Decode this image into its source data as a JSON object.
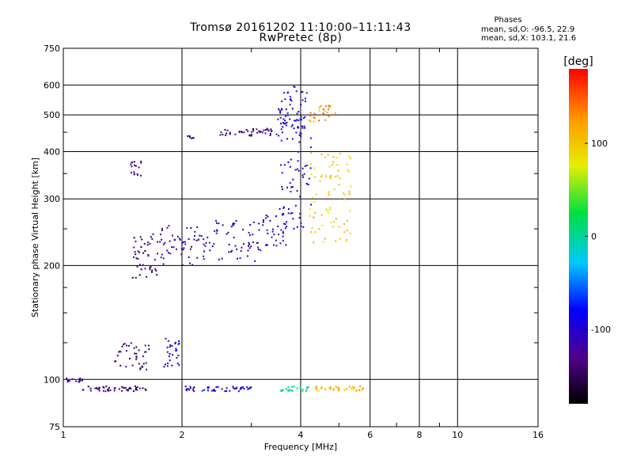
{
  "chart_data": {
    "type": "scatter",
    "title": "Tromsø 20161202 11:10:00–11:11:43",
    "subtitle": "RwPretec (8p)",
    "xlabel": "Frequency [MHz]",
    "ylabel": "Stationary phase Virtual Height [km]",
    "x_scale": "log",
    "y_scale": "log",
    "xlim": [
      1,
      16
    ],
    "ylim": [
      75,
      750
    ],
    "x_ticks": [
      1,
      2,
      4,
      6,
      8,
      10,
      16
    ],
    "x_tick_labels": [
      "1",
      "2",
      "4",
      "6",
      "8",
      "10",
      "16"
    ],
    "y_ticks": [
      75,
      100,
      200,
      300,
      400,
      500,
      600,
      750
    ],
    "y_tick_labels": [
      "75",
      "100",
      "200",
      "300",
      "400",
      "500",
      "600",
      "750"
    ],
    "grid": true,
    "phase_stats": {
      "title": "Phases",
      "line_o": "mean, sd,O: -96.5, 22.9",
      "line_x": "mean, sd,X: 103.1, 21.6"
    },
    "colorbar": {
      "label": "[deg]",
      "range": [
        -180,
        180
      ],
      "ticks": [
        100,
        0,
        -100
      ],
      "tick_labels": [
        "100",
        "0",
        "-100"
      ]
    },
    "series": [
      {
        "cluster": "E-region trace",
        "x_range": [
          1.0,
          1.12
        ],
        "y_range": [
          98,
          101
        ],
        "phase_deg": -120
      },
      {
        "cluster": "E-region trace",
        "x_range": [
          1.12,
          1.65
        ],
        "y_range": [
          93,
          96
        ],
        "phase_deg": -140
      },
      {
        "cluster": "E-region trace",
        "x_range": [
          2.0,
          2.15
        ],
        "y_range": [
          93,
          96
        ],
        "phase_deg": -110
      },
      {
        "cluster": "E-region trace",
        "x_range": [
          2.25,
          3.0
        ],
        "y_range": [
          93,
          96
        ],
        "phase_deg": -95
      },
      {
        "cluster": "E-region trace",
        "x_range": [
          3.55,
          4.2
        ],
        "y_range": [
          93,
          96
        ],
        "phase_deg": 10
      },
      {
        "cluster": "E-region trace",
        "x_range": [
          4.35,
          5.8
        ],
        "y_range": [
          93,
          96
        ],
        "phase_deg": 110
      },
      {
        "cluster": "Es patch",
        "x_range": [
          1.35,
          1.65
        ],
        "y_range": [
          106,
          125
        ],
        "phase_deg": -140
      },
      {
        "cluster": "Es patch",
        "x_range": [
          1.8,
          1.98
        ],
        "y_range": [
          108,
          130
        ],
        "phase_deg": -100
      },
      {
        "cluster": "F1 trace",
        "x_range": [
          1.5,
          1.75
        ],
        "y_range": [
          185,
          245
        ],
        "phase_deg": -140
      },
      {
        "cluster": "F1 trace",
        "x_range": [
          1.75,
          2.2
        ],
        "y_range": [
          200,
          255
        ],
        "phase_deg": -120
      },
      {
        "cluster": "F1 trace",
        "x_range": [
          2.2,
          3.2
        ],
        "y_range": [
          205,
          265
        ],
        "phase_deg": -110
      },
      {
        "cluster": "F1 trace",
        "x_range": [
          3.2,
          3.7
        ],
        "y_range": [
          225,
          275
        ],
        "phase_deg": -100
      },
      {
        "cluster": "F2 trace O-mode",
        "x_range": [
          3.5,
          4.25
        ],
        "y_range": [
          250,
          600
        ],
        "phase_deg": -100
      },
      {
        "cluster": "F2 trace X-mode",
        "x_range": [
          4.2,
          5.4
        ],
        "y_range": [
          230,
          400
        ],
        "phase_deg": 100
      },
      {
        "cluster": "Upper trace",
        "x_range": [
          2.5,
          3.5
        ],
        "y_range": [
          440,
          460
        ],
        "phase_deg": -130
      },
      {
        "cluster": "Upper trace",
        "x_range": [
          3.5,
          4.1
        ],
        "y_range": [
          460,
          520
        ],
        "phase_deg": -90
      },
      {
        "cluster": "Upper trace",
        "x_range": [
          4.2,
          4.9
        ],
        "y_range": [
          480,
          530
        ],
        "phase_deg": 130
      },
      {
        "cluster": "Isolated echo",
        "x_range": [
          1.48,
          1.58
        ],
        "y_range": [
          345,
          380
        ],
        "phase_deg": -140
      },
      {
        "cluster": "Isolated echo",
        "x_range": [
          2.05,
          2.15
        ],
        "y_range": [
          432,
          440
        ],
        "phase_deg": -120
      }
    ]
  }
}
